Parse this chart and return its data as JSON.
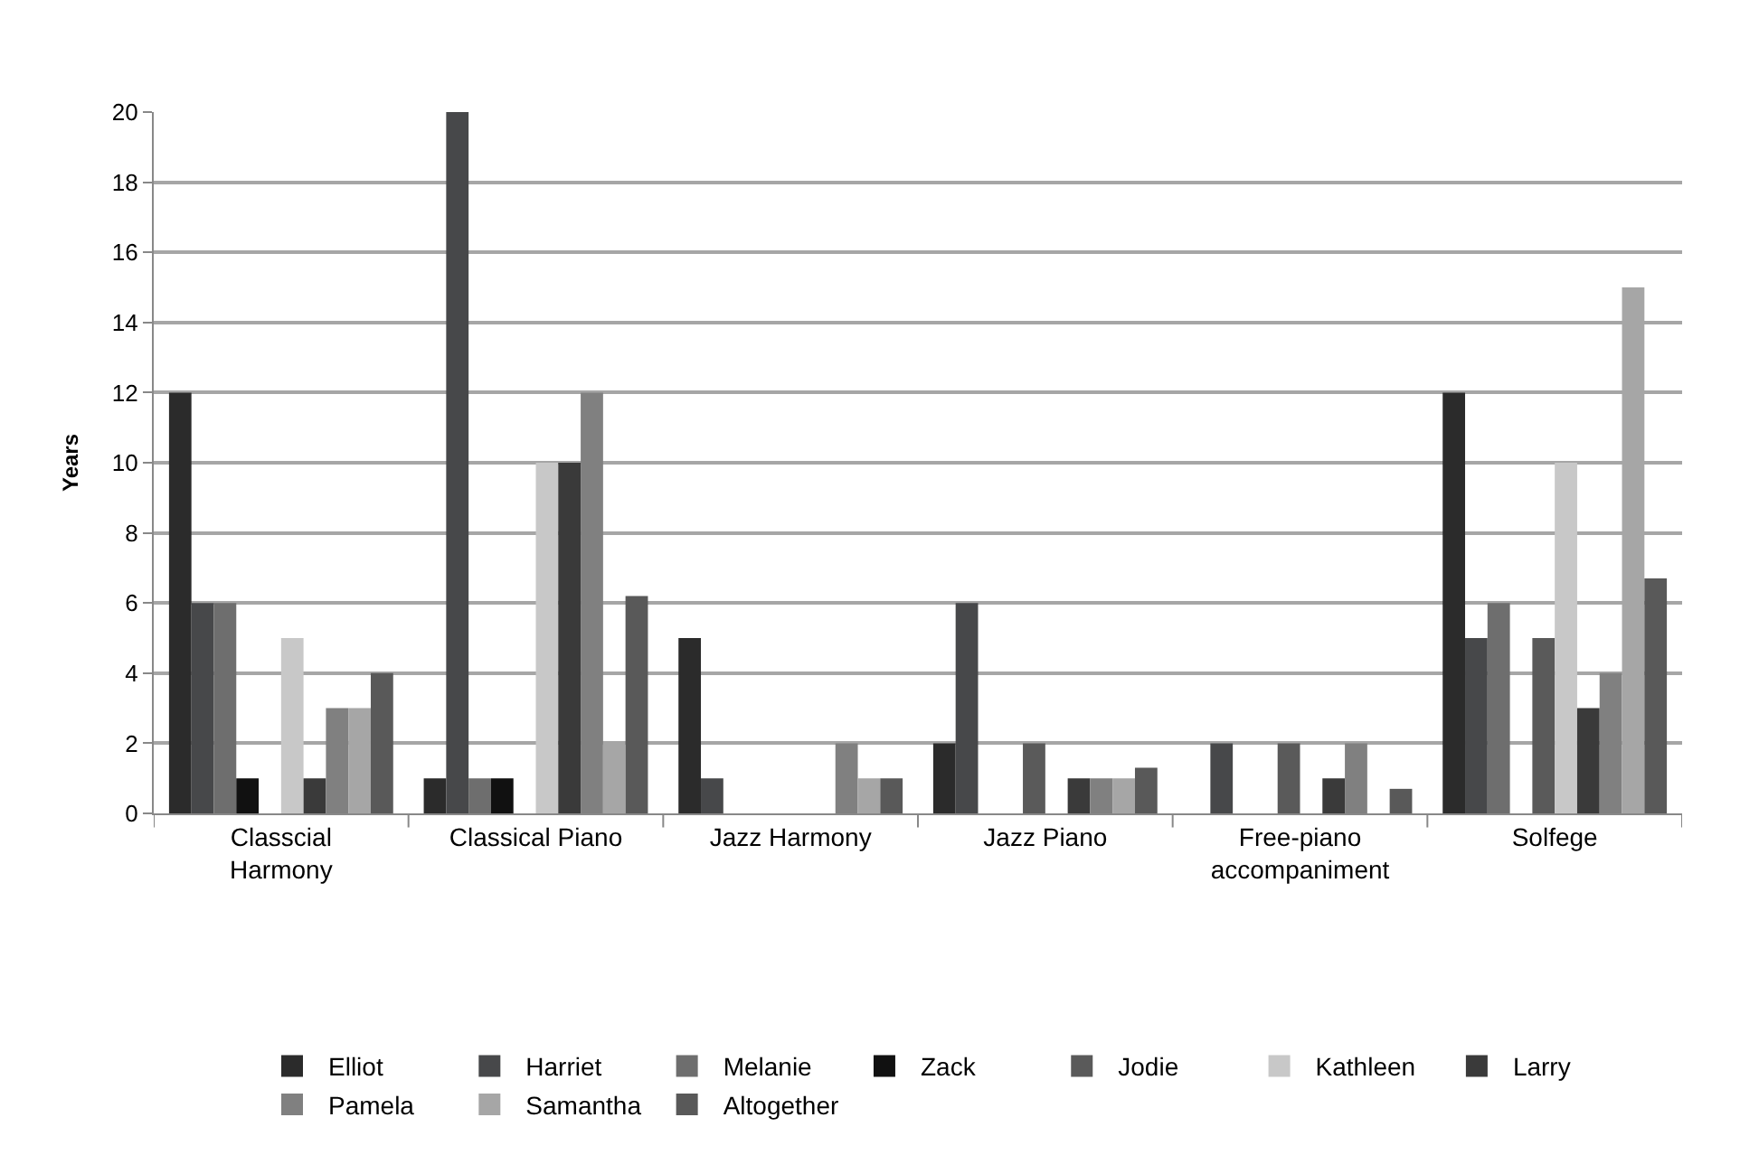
{
  "chart_data": {
    "type": "bar",
    "ylabel": "Years",
    "categories": [
      "Classcial Harmony",
      "Classical Piano",
      "Jazz Harmony",
      "Jazz Piano",
      "Free-piano accompaniment",
      "Solfege"
    ],
    "series": [
      {
        "name": "Elliot",
        "color": "#2b2b2b",
        "values": [
          12,
          1,
          5,
          2,
          0,
          12
        ]
      },
      {
        "name": "Harriet",
        "color": "#47484a",
        "values": [
          6,
          20,
          1,
          6,
          2,
          5
        ]
      },
      {
        "name": "Melanie",
        "color": "#6e6e6e",
        "values": [
          6,
          1,
          0,
          0,
          0,
          6
        ]
      },
      {
        "name": "Zack",
        "color": "#111111",
        "values": [
          1,
          1,
          0,
          0,
          0,
          0
        ]
      },
      {
        "name": "Jodie",
        "color": "#5a5a5a",
        "values": [
          0,
          0,
          0,
          2,
          2,
          5
        ]
      },
      {
        "name": "Kathleen",
        "color": "#c8c8c8",
        "values": [
          5,
          10,
          0,
          0,
          0,
          10
        ]
      },
      {
        "name": "Larry",
        "color": "#3a3a3a",
        "values": [
          1,
          10,
          0,
          1,
          1,
          3
        ]
      },
      {
        "name": "Pamela",
        "color": "#808080",
        "values": [
          3,
          12,
          2,
          1,
          2,
          4
        ]
      },
      {
        "name": "Samantha",
        "color": "#a6a6a6",
        "values": [
          3,
          2,
          1,
          1,
          0,
          15
        ]
      },
      {
        "name": "Altogether",
        "color": "#595959",
        "values": [
          4,
          6.2,
          1,
          1.3,
          0.7,
          6.7
        ]
      }
    ],
    "ylim": [
      0,
      20
    ],
    "yticks": [
      0,
      2,
      4,
      6,
      8,
      10,
      12,
      14,
      16,
      18,
      20
    ],
    "grid": "y",
    "legend": "bottom"
  }
}
